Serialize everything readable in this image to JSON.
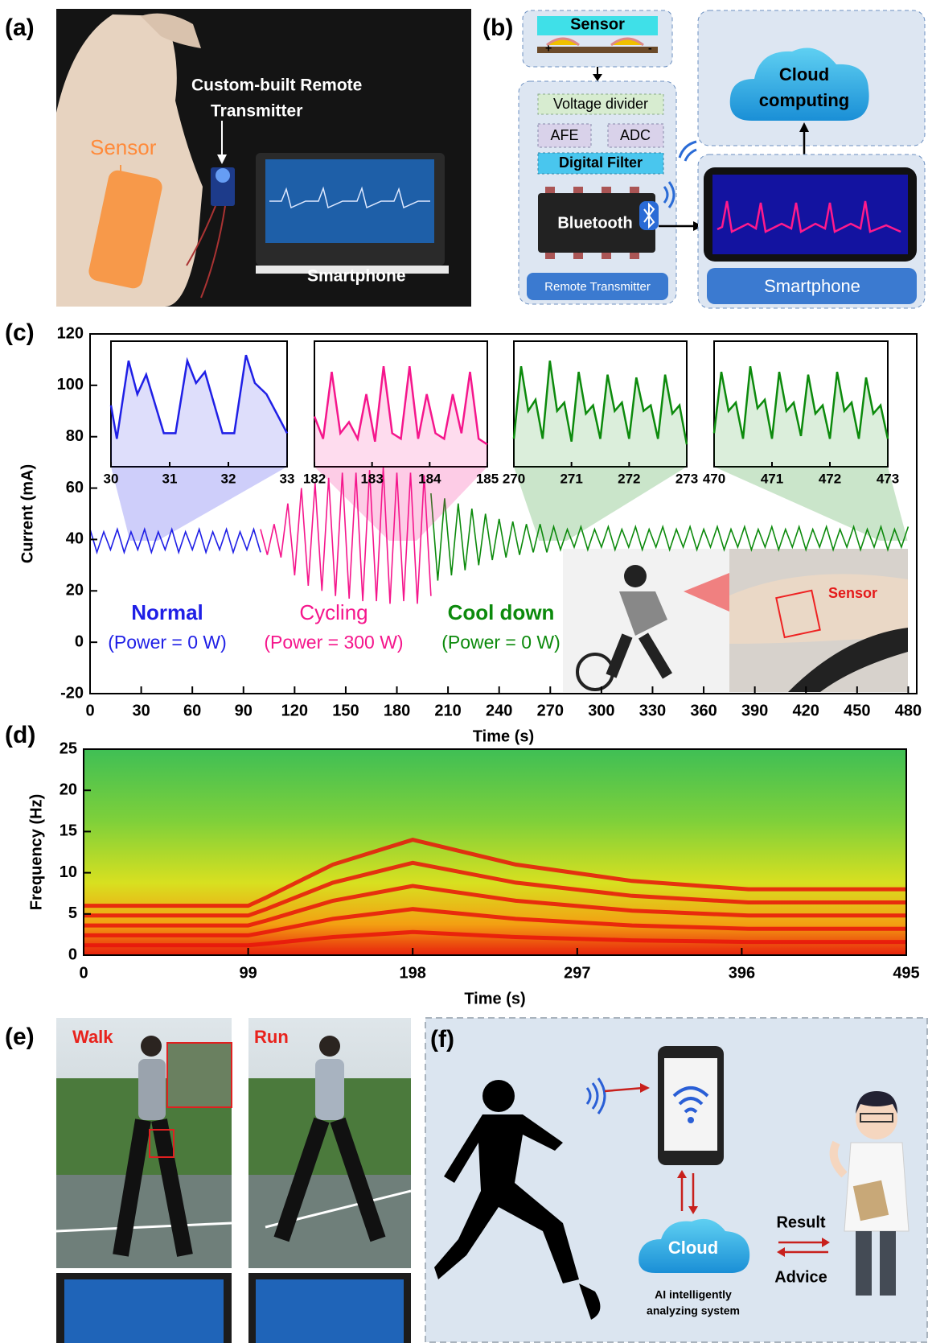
{
  "panels": {
    "a": {
      "label": "(a)",
      "sensor": "Sensor",
      "transmitter": [
        "Custom-built Remote",
        "Transmitter"
      ],
      "smartphone": "Smartphone"
    },
    "b": {
      "label": "(b)",
      "sensor": "Sensor",
      "plus": "+",
      "minus": "-",
      "voltage_divider": "Voltage divider",
      "afe": "AFE",
      "adc": "ADC",
      "digital_filter": "Digital Filter",
      "bluetooth": "Bluetooth",
      "remote_transmitter": "Remote Transmitter",
      "cloud": [
        "Cloud",
        "computing"
      ],
      "smartphone": "Smartphone"
    },
    "e": {
      "label": "(e)",
      "walk": "Walk",
      "run": "Run"
    },
    "f": {
      "label": "(f)",
      "cloud": "Cloud",
      "system": [
        "AI intelligently",
        "analyzing system"
      ],
      "result": "Result",
      "advice": "Advice"
    }
  },
  "chart_data": [
    {
      "type": "line",
      "label": "(c)",
      "xlabel": "Time (s)",
      "ylabel": "Current (mA)",
      "xlim": [
        0,
        485
      ],
      "xticks": [
        0,
        30,
        60,
        90,
        120,
        150,
        180,
        210,
        240,
        270,
        300,
        330,
        360,
        390,
        420,
        450,
        480
      ],
      "ylim": [
        -20,
        120
      ],
      "yticks": [
        -20,
        0,
        20,
        40,
        60,
        80,
        100,
        120
      ],
      "photo_label": "Sensor",
      "series": [
        {
          "name": "Normal",
          "note": "(Power = 0 W)",
          "color": "#1f1fe6",
          "x": [
            0,
            4,
            8,
            12,
            16,
            20,
            24,
            28,
            32,
            36,
            40,
            44,
            48,
            52,
            56,
            60,
            64,
            68,
            72,
            76,
            80,
            84,
            88,
            92,
            96,
            100
          ],
          "values": [
            44,
            35,
            43,
            36,
            44,
            35,
            43,
            36,
            44,
            35,
            43,
            36,
            44,
            35,
            43,
            36,
            44,
            35,
            43,
            36,
            44,
            35,
            43,
            36,
            44,
            35
          ]
        },
        {
          "name": "Cycling",
          "note": "(Power = 300 W)",
          "color": "#f5168c",
          "x": [
            100,
            104,
            108,
            112,
            116,
            120,
            124,
            128,
            132,
            136,
            140,
            144,
            148,
            152,
            156,
            160,
            164,
            168,
            172,
            176,
            180,
            184,
            188,
            192,
            196,
            200
          ],
          "values": [
            44,
            34,
            46,
            33,
            54,
            26,
            60,
            22,
            62,
            20,
            64,
            18,
            66,
            17,
            66,
            16,
            67,
            16,
            68,
            15,
            66,
            16,
            66,
            15,
            65,
            18
          ]
        },
        {
          "name": "Cool down",
          "note": "(Power = 0 W)",
          "color": "#0c8a0c",
          "x": [
            200,
            204,
            208,
            212,
            216,
            220,
            224,
            228,
            232,
            236,
            240,
            244,
            248,
            252,
            256,
            260,
            264,
            268,
            272,
            276,
            280,
            284,
            288,
            292,
            296,
            300,
            304,
            308,
            312,
            316,
            320,
            324,
            328,
            332,
            336,
            340,
            344,
            348,
            352,
            356,
            360,
            364,
            368,
            372,
            376,
            380,
            384,
            388,
            392,
            396,
            400,
            404,
            408,
            412,
            416,
            420,
            424,
            428,
            432,
            436,
            440,
            444,
            448,
            452,
            456,
            460,
            464,
            468,
            472,
            476,
            480
          ],
          "values": [
            58,
            24,
            56,
            26,
            54,
            28,
            52,
            30,
            50,
            32,
            48,
            33,
            47,
            34,
            46,
            35,
            46,
            35,
            45,
            36,
            44,
            37,
            45,
            36,
            44,
            37,
            45,
            36,
            44,
            37,
            45,
            36,
            44,
            37,
            45,
            36,
            44,
            37,
            45,
            36,
            44,
            37,
            45,
            36,
            44,
            37,
            45,
            36,
            44,
            37,
            45,
            36,
            44,
            37,
            45,
            36,
            44,
            37,
            45,
            36,
            44,
            37,
            45,
            36,
            44,
            37,
            45,
            36,
            44,
            37,
            45
          ]
        }
      ],
      "insets": [
        {
          "color": "#1f1fe6",
          "xlim": [
            30,
            33
          ],
          "xticks": [
            30,
            31,
            32,
            33
          ],
          "ylim": [
            70,
            115
          ],
          "x": [
            30,
            30.1,
            30.3,
            30.45,
            30.6,
            30.9,
            31.1,
            31.3,
            31.45,
            31.6,
            31.9,
            32.1,
            32.3,
            32.45,
            32.65,
            32.9,
            33
          ],
          "values": [
            92,
            80,
            108,
            96,
            103,
            82,
            82,
            108,
            100,
            104,
            82,
            82,
            110,
            100,
            96,
            86,
            82
          ]
        },
        {
          "color": "#f5168c",
          "xlim": [
            182,
            185
          ],
          "xticks": [
            182,
            183,
            184,
            185
          ],
          "ylim": [
            70,
            115
          ],
          "x": [
            182,
            182.15,
            182.3,
            182.45,
            182.6,
            182.75,
            182.9,
            183.05,
            183.2,
            183.35,
            183.5,
            183.65,
            183.8,
            183.95,
            184.1,
            184.25,
            184.4,
            184.55,
            184.7,
            184.85,
            185
          ],
          "values": [
            88,
            80,
            104,
            82,
            86,
            80,
            96,
            79,
            106,
            82,
            80,
            106,
            80,
            96,
            82,
            80,
            96,
            82,
            104,
            80,
            78
          ]
        },
        {
          "color": "#0c8a0c",
          "xlim": [
            270,
            273
          ],
          "xticks": [
            270,
            271,
            272,
            273
          ],
          "ylim": [
            70,
            115
          ],
          "x": [
            270,
            270.125,
            270.25,
            270.375,
            270.5,
            270.625,
            270.75,
            270.875,
            271,
            271.125,
            271.25,
            271.375,
            271.5,
            271.625,
            271.75,
            271.875,
            272,
            272.125,
            272.25,
            272.375,
            272.5,
            272.625,
            272.75,
            272.875,
            273
          ],
          "values": [
            80,
            106,
            90,
            94,
            80,
            108,
            90,
            93,
            79,
            104,
            89,
            92,
            80,
            103,
            90,
            93,
            80,
            102,
            90,
            92,
            80,
            103,
            89,
            92,
            78
          ]
        },
        {
          "color": "#0c8a0c",
          "xlim": [
            470,
            473
          ],
          "xticks": [
            470,
            471,
            472,
            473
          ],
          "ylim": [
            70,
            115
          ],
          "x": [
            470,
            470.125,
            470.25,
            470.375,
            470.5,
            470.625,
            470.75,
            470.875,
            471,
            471.125,
            471.25,
            471.375,
            471.5,
            471.625,
            471.75,
            471.875,
            472,
            472.125,
            472.25,
            472.375,
            472.5,
            472.625,
            472.75,
            472.875,
            473
          ],
          "values": [
            82,
            104,
            90,
            93,
            80,
            106,
            91,
            94,
            80,
            104,
            90,
            93,
            81,
            103,
            89,
            92,
            80,
            104,
            90,
            93,
            80,
            102,
            89,
            92,
            80
          ]
        }
      ]
    },
    {
      "type": "spectrogram",
      "label": "(d)",
      "xlabel": "Time (s)",
      "ylabel": "Frequency (Hz)",
      "xlim": [
        0,
        495
      ],
      "xticks": [
        0,
        99,
        198,
        297,
        396,
        495
      ],
      "ylim": [
        0,
        25
      ],
      "yticks": [
        0,
        5,
        10,
        15,
        20,
        25
      ],
      "series": [
        {
          "color": "#e8140c",
          "x": [
            0,
            99,
            110,
            150,
            198,
            260,
            330,
            400,
            495
          ],
          "values": [
            1.2,
            1.2,
            1.4,
            2.2,
            2.8,
            2.2,
            1.8,
            1.6,
            1.6
          ]
        },
        {
          "color": "#e8140c",
          "x": [
            0,
            99,
            110,
            150,
            198,
            260,
            330,
            400,
            495
          ],
          "values": [
            2.4,
            2.4,
            2.8,
            4.4,
            5.6,
            4.4,
            3.6,
            3.2,
            3.2
          ]
        },
        {
          "color": "#e8140c",
          "x": [
            0,
            99,
            110,
            150,
            198,
            260,
            330,
            400,
            495
          ],
          "values": [
            3.6,
            3.6,
            4.2,
            6.6,
            8.4,
            6.6,
            5.4,
            4.8,
            4.8
          ]
        },
        {
          "color": "#e8140c",
          "x": [
            0,
            99,
            110,
            150,
            198,
            260,
            330,
            400,
            495
          ],
          "values": [
            4.8,
            4.8,
            5.6,
            8.8,
            11.2,
            8.8,
            7.2,
            6.4,
            6.4
          ]
        },
        {
          "color": "#e8140c",
          "x": [
            0,
            99,
            110,
            150,
            198,
            260,
            330,
            400,
            495
          ],
          "values": [
            6,
            6,
            7,
            11,
            14,
            11,
            9,
            8,
            8
          ]
        }
      ]
    }
  ]
}
